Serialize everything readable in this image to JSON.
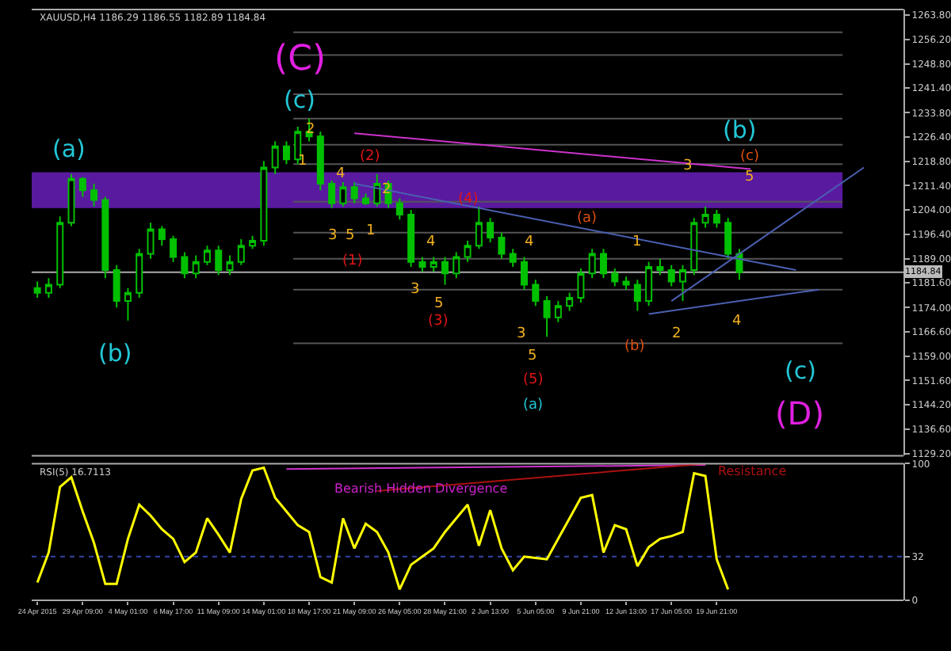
{
  "chart_data": [
    {
      "type": "candlestick",
      "title": "XAUUSD,H4 1186.29 1186.55 1182.89 1184.84",
      "color": "#00c000",
      "categories": [
        null,
        null,
        null,
        null,
        null,
        null,
        null,
        null,
        null,
        null,
        null,
        null,
        null,
        null,
        null,
        null,
        null,
        null,
        null,
        null,
        null,
        null,
        null,
        null,
        null,
        null,
        null,
        null,
        null,
        null,
        null,
        null,
        null,
        null,
        null,
        null,
        null,
        null,
        null,
        null,
        null,
        null,
        null,
        null,
        null,
        null,
        null,
        null,
        null,
        null,
        null,
        null,
        null,
        null,
        null,
        null,
        null,
        null,
        null,
        null,
        null,
        null,
        null,
        null,
        null,
        null,
        null,
        null,
        null,
        null,
        null,
        null,
        null,
        null,
        null,
        null,
        null
      ],
      "ohlc": [
        [
          1180,
          1182,
          1177,
          1178.5
        ],
        [
          1178.5,
          1183,
          1177,
          1181
        ],
        [
          1181,
          1202,
          1180,
          1200
        ],
        [
          1200,
          1215,
          1199,
          1213.5
        ],
        [
          1213.5,
          1214,
          1208,
          1210
        ],
        [
          1210,
          1212,
          1205,
          1207
        ],
        [
          1207,
          1208,
          1183,
          1185.5
        ],
        [
          1185.5,
          1187,
          1174,
          1176
        ],
        [
          1176,
          1180,
          1170,
          1178.5
        ],
        [
          1178.5,
          1192,
          1177,
          1190.5
        ],
        [
          1190.5,
          1200,
          1189,
          1198
        ],
        [
          1198,
          1199,
          1193,
          1195
        ],
        [
          1195,
          1196,
          1188,
          1189.5
        ],
        [
          1189.5,
          1191,
          1183,
          1184.5
        ],
        [
          1184.5,
          1190,
          1183,
          1188
        ],
        [
          1188,
          1193,
          1187,
          1191.5
        ],
        [
          1191.5,
          1193,
          1184,
          1185.5
        ],
        [
          1185.5,
          1190,
          1184,
          1188
        ],
        [
          1188,
          1195,
          1187,
          1193
        ],
        [
          1193,
          1196,
          1192,
          1194.5
        ],
        [
          1194.5,
          1219,
          1193,
          1217
        ],
        [
          1217,
          1225,
          1215,
          1223.5
        ],
        [
          1223.5,
          1225,
          1218,
          1219.5
        ],
        [
          1219.5,
          1229.5,
          1218,
          1228
        ],
        [
          1228,
          1232,
          1225,
          1226.5
        ],
        [
          1226.5,
          1228,
          1210,
          1212
        ],
        [
          1212,
          1213,
          1204.5,
          1206
        ],
        [
          1206,
          1212.5,
          1205,
          1211
        ],
        [
          1211,
          1212.5,
          1206,
          1207.5
        ],
        [
          1207.5,
          1209,
          1205.5,
          1206
        ],
        [
          1206,
          1215,
          1205,
          1212
        ],
        [
          1212,
          1213,
          1204.5,
          1206
        ],
        [
          1206,
          1207.5,
          1201,
          1202.5
        ],
        [
          1202.5,
          1204,
          1186.5,
          1188
        ],
        [
          1188,
          1189.5,
          1185,
          1186.5
        ],
        [
          1186.5,
          1189.5,
          1185,
          1188
        ],
        [
          1188,
          1189.5,
          1181,
          1184.5
        ],
        [
          1184.5,
          1191,
          1183,
          1189.5
        ],
        [
          1189.5,
          1194.5,
          1188,
          1193
        ],
        [
          1193,
          1205,
          1192,
          1200
        ],
        [
          1200,
          1201.5,
          1194,
          1195.5
        ],
        [
          1195.5,
          1197,
          1189,
          1190.5
        ],
        [
          1190.5,
          1192,
          1186.5,
          1188
        ],
        [
          1188,
          1189.5,
          1179.5,
          1181
        ],
        [
          1181,
          1182.5,
          1174.5,
          1176
        ],
        [
          1176,
          1177.5,
          1165,
          1171
        ],
        [
          1171,
          1176,
          1169.5,
          1174.5
        ],
        [
          1174.5,
          1178.5,
          1173,
          1177
        ],
        [
          1177,
          1186,
          1175.5,
          1184.5
        ],
        [
          1184.5,
          1192,
          1183,
          1190.5
        ],
        [
          1190.5,
          1192,
          1183,
          1184.5
        ],
        [
          1184.5,
          1186,
          1180.5,
          1182
        ],
        [
          1182,
          1183.5,
          1179.5,
          1181
        ],
        [
          1181,
          1182.5,
          1173,
          1176
        ],
        [
          1176,
          1188,
          1174.5,
          1186.5
        ],
        [
          1186.5,
          1189,
          1184,
          1185.5
        ],
        [
          1185.5,
          1187,
          1180.5,
          1182
        ],
        [
          1182,
          1187,
          1176,
          1185.5
        ],
        [
          1185.5,
          1201.5,
          1184,
          1200
        ],
        [
          1200,
          1205,
          1198.5,
          1202.5
        ],
        [
          1202.5,
          1204,
          1198.5,
          1200
        ],
        [
          1200,
          1201.5,
          1189,
          1190.5
        ],
        [
          1190.5,
          1192,
          1182.5,
          1184.84
        ],
        null,
        null,
        null,
        null,
        null,
        null,
        null,
        null,
        null,
        null,
        null,
        null,
        null,
        null
      ],
      "series": [
        {
          "type": "line",
          "color": "#cc33cc",
          "values": [
            null,
            null,
            null,
            null,
            null,
            null,
            null,
            null,
            null,
            null,
            null,
            null,
            null,
            null,
            null,
            null,
            null,
            null,
            null,
            null,
            null,
            null,
            null,
            null,
            null,
            null,
            null,
            null,
            1227.5,
            null,
            null,
            null,
            null,
            null,
            null,
            null,
            null,
            null,
            null,
            null,
            null,
            null,
            null,
            null,
            null,
            null,
            null,
            null,
            null,
            null,
            null,
            null,
            null,
            null,
            null,
            null,
            null,
            null,
            null,
            null,
            null,
            null,
            null,
            1216.5,
            null,
            null,
            null,
            null,
            null,
            null,
            null,
            null,
            null,
            null,
            null,
            null,
            null
          ]
        },
        {
          "type": "line",
          "color": "#4a5fb0",
          "values": [
            null,
            null,
            null,
            null,
            null,
            null,
            null,
            null,
            null,
            null,
            null,
            null,
            null,
            null,
            null,
            null,
            null,
            null,
            null,
            null,
            null,
            null,
            null,
            null,
            null,
            null,
            null,
            null,
            1212,
            null,
            null,
            null,
            null,
            null,
            null,
            null,
            null,
            null,
            null,
            null,
            null,
            null,
            null,
            null,
            null,
            null,
            null,
            null,
            null,
            null,
            null,
            null,
            null,
            null,
            null,
            null,
            null,
            null,
            null,
            null,
            null,
            null,
            null,
            null,
            null,
            null,
            null,
            1185.5,
            null,
            null,
            null,
            null,
            null,
            null,
            null,
            null,
            null
          ]
        },
        {
          "type": "line",
          "color": "#4a5fb0",
          "values": [
            null,
            null,
            null,
            null,
            null,
            null,
            null,
            null,
            null,
            null,
            null,
            null,
            null,
            null,
            null,
            null,
            null,
            null,
            null,
            null,
            null,
            null,
            null,
            null,
            null,
            null,
            null,
            null,
            null,
            null,
            null,
            null,
            null,
            null,
            null,
            null,
            null,
            null,
            null,
            null,
            null,
            null,
            null,
            null,
            null,
            null,
            null,
            null,
            null,
            null,
            null,
            null,
            null,
            null,
            1172,
            null,
            null,
            null,
            null,
            null,
            null,
            null,
            null,
            null,
            null,
            null,
            null,
            null,
            null,
            1179.5,
            null,
            null,
            null,
            null,
            null,
            null,
            null
          ]
        },
        {
          "type": "line",
          "color": "#4a5fb0",
          "values": [
            null,
            null,
            null,
            null,
            null,
            null,
            null,
            null,
            null,
            null,
            null,
            null,
            null,
            null,
            null,
            null,
            null,
            null,
            null,
            null,
            null,
            null,
            null,
            null,
            null,
            null,
            null,
            null,
            null,
            null,
            null,
            null,
            null,
            null,
            null,
            null,
            null,
            null,
            null,
            null,
            null,
            null,
            null,
            null,
            null,
            null,
            null,
            null,
            null,
            null,
            null,
            null,
            null,
            null,
            null,
            null,
            1176,
            null,
            null,
            null,
            null,
            null,
            null,
            null,
            null,
            null,
            null,
            null,
            null,
            null,
            null,
            null,
            null,
            1217,
            null,
            null,
            null
          ]
        }
      ],
      "bands": [
        {
          "axis": "y",
          "from": 1204.5,
          "to": 1215.5,
          "color": "#5a1aa0"
        }
      ],
      "ref_lines": [
        {
          "axis": "y",
          "value": 1184.84,
          "label": "1184.84",
          "color": "#aaaaaa"
        },
        {
          "axis": "y",
          "value": 1258.5,
          "color": "#555555"
        },
        {
          "axis": "y",
          "value": 1251.5,
          "color": "#555555"
        },
        {
          "axis": "y",
          "value": 1239.5,
          "color": "#555555"
        },
        {
          "axis": "y",
          "value": 1232,
          "color": "#555555"
        },
        {
          "axis": "y",
          "value": 1224,
          "color": "#555555"
        },
        {
          "axis": "y",
          "value": 1218,
          "color": "#555555"
        },
        {
          "axis": "y",
          "value": 1206.5,
          "color": "#555555"
        },
        {
          "axis": "y",
          "value": 1197,
          "color": "#555555"
        },
        {
          "axis": "y",
          "value": 1189,
          "color": "#555555"
        },
        {
          "axis": "y",
          "value": 1179.5,
          "color": "#555555"
        },
        {
          "axis": "y",
          "value": 1163,
          "color": "#555555"
        }
      ],
      "annotations": [
        "(C)",
        "(c)",
        "(a)",
        "(b)",
        "2",
        "1",
        "4",
        "(2)",
        "2",
        "3",
        "5",
        "1",
        "(1)",
        "4",
        "3",
        "5",
        "(3)",
        "(4)",
        "4",
        "3",
        "5",
        "(5)",
        "(a)",
        "(a)",
        "1",
        "(b)",
        "2",
        "3",
        "(c)",
        "5",
        "(b)",
        "4",
        "(c)",
        "(D)"
      ],
      "ylim": [
        1128.5,
        1265.5
      ],
      "yticks": [
        {
          "value": 1263.8,
          "label": "1263.80"
        },
        {
          "value": 1256.2,
          "label": "1256.20"
        },
        {
          "value": 1248.8,
          "label": "1248.80"
        },
        {
          "value": 1241.4,
          "label": "1241.40"
        },
        {
          "value": 1233.8,
          "label": "1233.80"
        },
        {
          "value": 1226.4,
          "label": "1226.40"
        },
        {
          "value": 1218.8,
          "label": "1218.80"
        },
        {
          "value": 1211.4,
          "label": "1211.40"
        },
        {
          "value": 1204,
          "label": "1204.00"
        },
        {
          "value": 1196.4,
          "label": "1196.40"
        },
        {
          "value": 1189,
          "label": "1189.00"
        },
        {
          "value": 1181.6,
          "label": "1181.60"
        },
        {
          "value": 1174,
          "label": "1174.00"
        },
        {
          "value": 1166.6,
          "label": "1166.60"
        },
        {
          "value": 1159,
          "label": "1159.00"
        },
        {
          "value": 1151.6,
          "label": "1151.60"
        },
        {
          "value": 1144.2,
          "label": "1144.20"
        },
        {
          "value": 1136.6,
          "label": "1136.60"
        },
        {
          "value": 1129.2,
          "label": "1129.20"
        }
      ],
      "tick_labels": "y"
    },
    {
      "type": "line",
      "title": "RSI(5) 16.7113",
      "color": "#ffff00",
      "categories": [
        "24 Apr 2015",
        null,
        null,
        null,
        "29 Apr 09:00",
        null,
        null,
        null,
        "4 May 01:00",
        null,
        null,
        null,
        "6 May 17:00",
        null,
        null,
        null,
        "11 May 09:00",
        null,
        null,
        null,
        "14 May 01:00",
        null,
        null,
        null,
        "18 May 17:00",
        null,
        null,
        null,
        "21 May 09:00",
        null,
        null,
        null,
        "26 May 05:00",
        null,
        null,
        null,
        "28 May 21:00",
        null,
        null,
        null,
        "2 Jun 13:00",
        null,
        null,
        null,
        "5 Jun 05:00",
        null,
        null,
        null,
        "9 Jun 21:00",
        null,
        null,
        null,
        "12 Jun 13:00",
        null,
        null,
        null,
        "17 Jun 05:00",
        null,
        null,
        null,
        "19 Jun 21:00",
        null,
        null,
        null,
        null,
        null,
        null,
        null,
        null,
        null,
        null,
        null,
        null,
        null,
        null,
        null,
        null
      ],
      "values": [
        13,
        35,
        83,
        90,
        65,
        42,
        12,
        12,
        45,
        70,
        62,
        52,
        45,
        28,
        35,
        60,
        48,
        35,
        74,
        95,
        97,
        75,
        65,
        55,
        50,
        17,
        13,
        60,
        38,
        56,
        50,
        35,
        8,
        26,
        32,
        38,
        50,
        60,
        70,
        40,
        66,
        38,
        22,
        32,
        31,
        30,
        45,
        60,
        75,
        77,
        35,
        55,
        52,
        25,
        39,
        45,
        47,
        50,
        93,
        91,
        30,
        8,
        null,
        null,
        null,
        null,
        null,
        null,
        null,
        null,
        null,
        null,
        null,
        null,
        null,
        null,
        null
      ],
      "series": [
        {
          "type": "line",
          "color": "#cc33cc",
          "values": [
            null,
            null,
            null,
            null,
            null,
            null,
            null,
            null,
            null,
            null,
            null,
            null,
            null,
            null,
            null,
            null,
            null,
            null,
            null,
            null,
            null,
            null,
            96,
            null,
            null,
            null,
            null,
            null,
            null,
            null,
            null,
            null,
            null,
            null,
            null,
            null,
            null,
            null,
            null,
            null,
            null,
            null,
            null,
            null,
            null,
            null,
            null,
            null,
            null,
            null,
            null,
            null,
            null,
            null,
            null,
            null,
            null,
            null,
            null,
            99,
            null,
            null,
            null,
            null,
            null,
            null,
            null,
            null,
            null,
            null,
            null,
            null,
            null,
            null,
            null,
            null,
            null
          ]
        },
        {
          "type": "line",
          "color": "#aa1111",
          "values": [
            null,
            null,
            null,
            null,
            null,
            null,
            null,
            null,
            null,
            null,
            null,
            null,
            null,
            null,
            null,
            null,
            null,
            null,
            null,
            null,
            null,
            null,
            null,
            null,
            null,
            null,
            null,
            null,
            null,
            null,
            80,
            null,
            null,
            null,
            null,
            null,
            null,
            null,
            null,
            null,
            null,
            null,
            null,
            null,
            null,
            null,
            null,
            null,
            null,
            null,
            null,
            null,
            null,
            null,
            null,
            null,
            null,
            null,
            null,
            100,
            null,
            null,
            null,
            null,
            null,
            null,
            null,
            null,
            null,
            null,
            null,
            null,
            null,
            null,
            null,
            null,
            null
          ]
        }
      ],
      "ref_lines": [
        {
          "axis": "y",
          "value": 32,
          "color": "#3344aa",
          "line_style": "dotted"
        }
      ],
      "annotations": [
        "Bearish Hidden Divergence",
        "Resistance"
      ],
      "ylim": [
        0,
        100
      ],
      "yticks": [
        0,
        32,
        100
      ]
    }
  ]
}
